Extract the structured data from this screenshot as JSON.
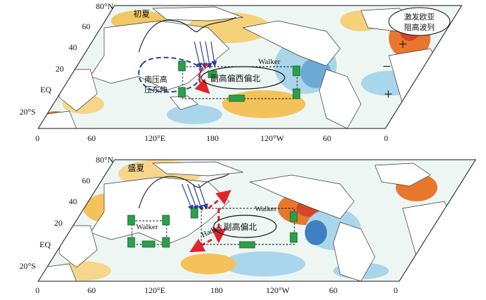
{
  "top_panel": {
    "title": "初夏",
    "lat_labels": [
      "80°N",
      "60",
      "40",
      "20",
      "EQ",
      "20°S"
    ],
    "lon_labels": [
      "0",
      "60",
      "120°E",
      "180",
      "120°W",
      "60",
      "0"
    ],
    "walker_label": "Walker",
    "anticyclone_label": "副高偏西偏北",
    "south_asia_high_label_1": "南压高",
    "south_asia_high_label_2": "压东伸",
    "eurasia_label_1": "激发欧亚",
    "eurasia_label_2": "阻高波列",
    "wave_signs": [
      "+",
      "−",
      "+"
    ]
  },
  "bottom_panel": {
    "title": "盛夏",
    "lat_labels": [
      "80°N",
      "60",
      "40",
      "20",
      "EQ",
      "20°S"
    ],
    "lon_labels": [
      "0",
      "60",
      "120°E",
      "180",
      "120°W",
      "60",
      "0"
    ],
    "walker_label_east": "Walker",
    "walker_label_west": "Walker",
    "hadley_label": "Hadley",
    "anticyclone_label": "副高偏北"
  },
  "colors": {
    "warm_anomaly": "#f2b84b",
    "warm_strong": "#e8772e",
    "cool_anomaly": "#8fc9e4",
    "cool_strong": "#3f7fc1",
    "sea_mid": "#e8f3f1",
    "circulation_arrow": "#2aa14a",
    "blue_dash": "#2a3f9e",
    "red_dash": "#e0242a"
  }
}
